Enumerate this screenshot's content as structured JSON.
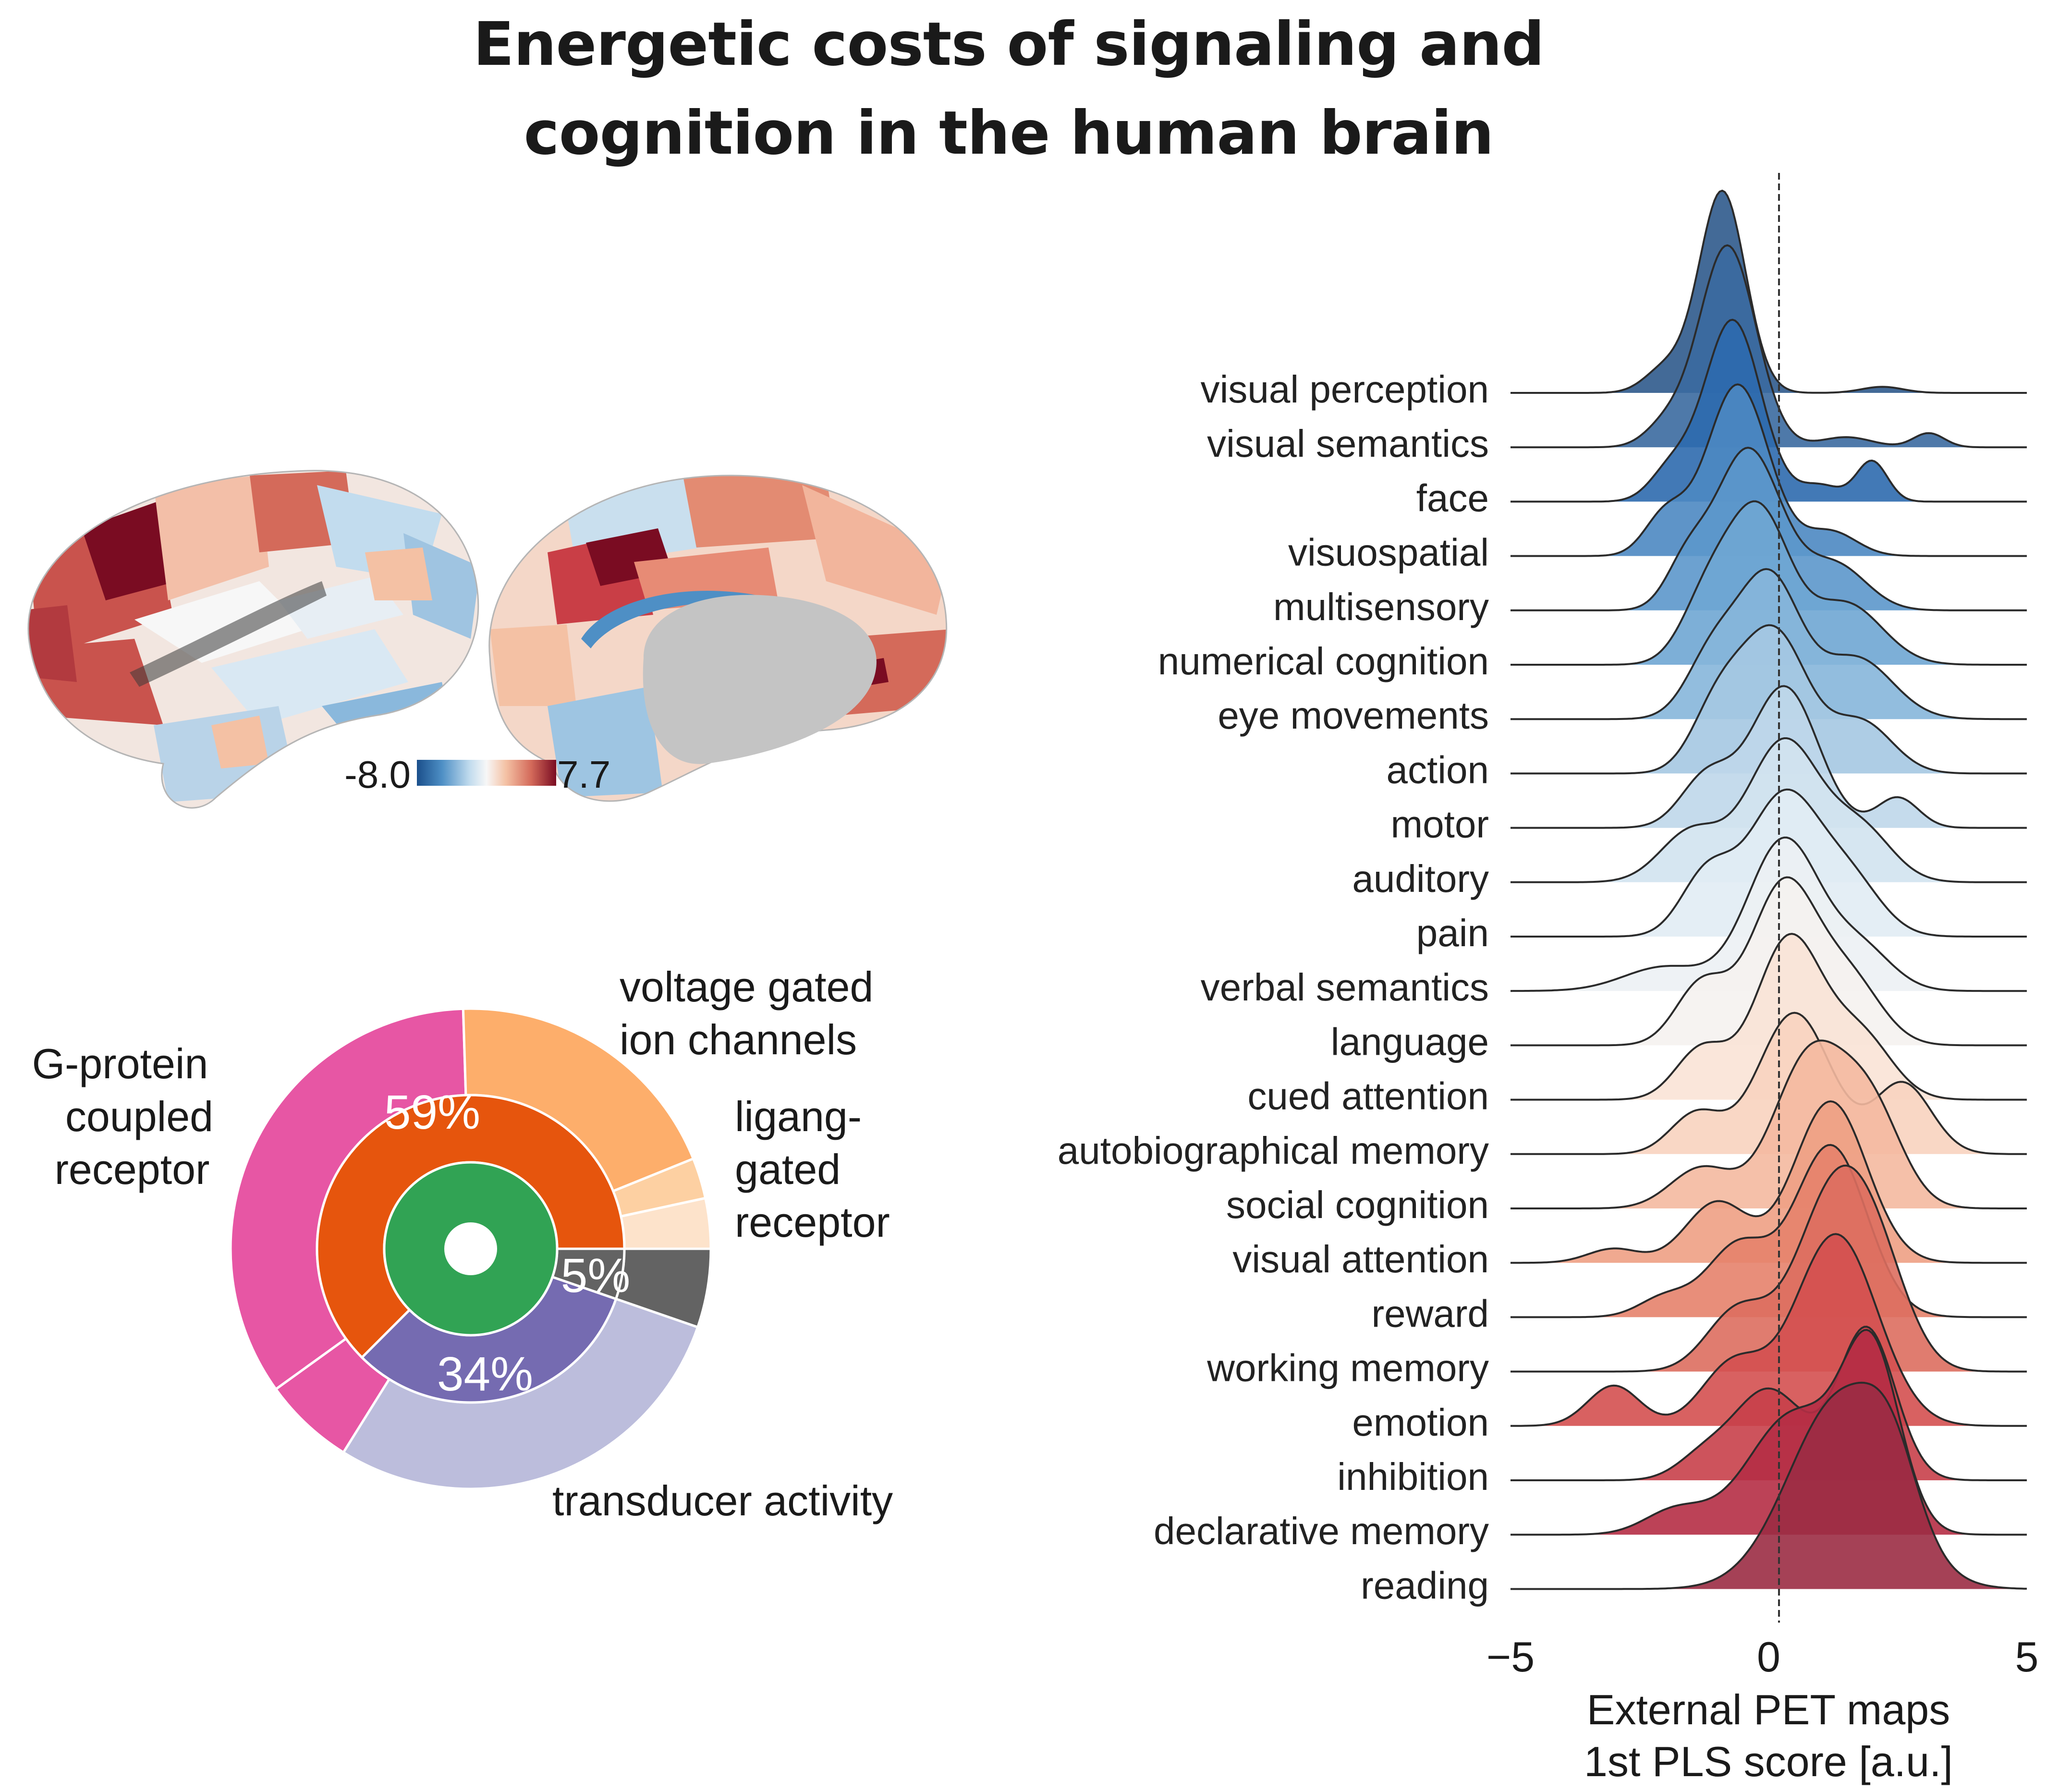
{
  "title": {
    "line1": "Energetic costs of signaling and",
    "line2": "cognition in the human brain"
  },
  "brain_colorbar": {
    "min_label": "-8.0",
    "max_label": "7.7",
    "colormap": [
      "#1a4f8b",
      "#4e8fc5",
      "#c2dcee",
      "#f7f7f7",
      "#f4c1a4",
      "#d46a5a",
      "#7a0c22"
    ]
  },
  "colors": {
    "gpcr": "#e756a4",
    "voltage_gated": "#fdae6b",
    "ligand_gated": "#fdd0a2",
    "ligand_gated_light": "#fde3cb",
    "other_outer": "#636363",
    "inner_59": "#e6550d",
    "inner_34": "#756bb1",
    "transducer_light": "#bcbddc",
    "center": "#31a354"
  },
  "donut": {
    "labels": {
      "gpcr": [
        "G-protein",
        "coupled",
        "receptor"
      ],
      "voltage_gated": [
        "voltage gated",
        "ion channels"
      ],
      "ligand_gated": [
        "ligang-",
        "gated",
        "receptor"
      ],
      "transducer": "transducer activity"
    },
    "percent_labels": {
      "p59": "59%",
      "p34": "34%",
      "p5": "5%"
    }
  },
  "chart_data": {
    "type": "ridgeline",
    "xlabel_line1": "External PET maps",
    "xlabel_line2": "1st PLS score [a.u.]",
    "xlim": [
      -5,
      5
    ],
    "xticks": [
      {
        "value": -5,
        "label": "−5"
      },
      {
        "value": 0,
        "label": "0"
      },
      {
        "value": 5,
        "label": "5"
      }
    ],
    "reference_line_x": 0.2,
    "categories": [
      {
        "name": "visual perception",
        "peaks": [
          [
            -0.9,
            1.0,
            0.45
          ],
          [
            -2.0,
            0.12,
            0.4
          ],
          [
            2.2,
            0.03,
            0.4
          ]
        ],
        "color": "#2f5a8c"
      },
      {
        "name": "visual semantics",
        "peaks": [
          [
            -0.8,
            1.0,
            0.55
          ],
          [
            -2.0,
            0.1,
            0.4
          ],
          [
            3.1,
            0.07,
            0.3
          ],
          [
            1.5,
            0.05,
            0.5
          ]
        ],
        "color": "#3b6aa0"
      },
      {
        "name": "face",
        "peaks": [
          [
            -0.7,
            0.9,
            0.55
          ],
          [
            -1.9,
            0.15,
            0.4
          ],
          [
            2.0,
            0.2,
            0.3
          ],
          [
            1.0,
            0.08,
            0.4
          ]
        ],
        "color": "#2d6aae"
      },
      {
        "name": "visuospatial",
        "peaks": [
          [
            -0.6,
            0.85,
            0.6
          ],
          [
            -2.0,
            0.2,
            0.4
          ],
          [
            1.2,
            0.12,
            0.5
          ]
        ],
        "color": "#4d88c2"
      },
      {
        "name": "multisensory",
        "peaks": [
          [
            -0.4,
            0.8,
            0.65
          ],
          [
            -1.6,
            0.2,
            0.4
          ],
          [
            1.3,
            0.22,
            0.6
          ]
        ],
        "color": "#5c97cb"
      },
      {
        "name": "numerical cognition",
        "peaks": [
          [
            -0.2,
            0.75,
            0.6
          ],
          [
            -1.2,
            0.3,
            0.5
          ],
          [
            1.5,
            0.3,
            0.7
          ]
        ],
        "color": "#6fa6d3"
      },
      {
        "name": "eye movements",
        "peaks": [
          [
            0.0,
            0.7,
            0.6
          ],
          [
            -1.1,
            0.3,
            0.5
          ],
          [
            1.7,
            0.3,
            0.7
          ]
        ],
        "color": "#86b6da"
      },
      {
        "name": "action",
        "peaks": [
          [
            0.1,
            0.7,
            0.65
          ],
          [
            -1.0,
            0.3,
            0.5
          ],
          [
            1.8,
            0.25,
            0.6
          ]
        ],
        "color": "#a5c8e2"
      },
      {
        "name": "motor",
        "peaks": [
          [
            0.3,
            0.7,
            0.65
          ],
          [
            -1.2,
            0.25,
            0.5
          ],
          [
            2.5,
            0.15,
            0.4
          ]
        ],
        "color": "#bfd7ea"
      },
      {
        "name": "auditory",
        "peaks": [
          [
            0.3,
            0.7,
            0.7
          ],
          [
            -1.5,
            0.25,
            0.6
          ],
          [
            1.8,
            0.25,
            0.6
          ]
        ],
        "color": "#d2e3f0"
      },
      {
        "name": "pain",
        "peaks": [
          [
            0.3,
            0.7,
            0.7
          ],
          [
            -1.2,
            0.3,
            0.5
          ],
          [
            1.6,
            0.25,
            0.6
          ]
        ],
        "color": "#e1ecf4"
      },
      {
        "name": "verbal semantics",
        "peaks": [
          [
            0.3,
            0.75,
            0.7
          ],
          [
            -2.0,
            0.12,
            0.8
          ],
          [
            1.8,
            0.2,
            0.6
          ]
        ],
        "color": "#ecf1f4"
      },
      {
        "name": "language",
        "peaks": [
          [
            0.3,
            0.8,
            0.65
          ],
          [
            -1.3,
            0.3,
            0.5
          ],
          [
            1.6,
            0.3,
            0.6
          ]
        ],
        "color": "#f5f2ef"
      },
      {
        "name": "cued attention",
        "peaks": [
          [
            0.4,
            0.8,
            0.65
          ],
          [
            -1.3,
            0.25,
            0.5
          ],
          [
            1.8,
            0.3,
            0.6
          ]
        ],
        "color": "#f9e3d6"
      },
      {
        "name": "autobiographical memory",
        "peaks": [
          [
            0.5,
            0.7,
            0.7
          ],
          [
            -1.4,
            0.2,
            0.5
          ],
          [
            2.6,
            0.35,
            0.55
          ]
        ],
        "color": "#f8d3bf"
      },
      {
        "name": "social cognition",
        "peaks": [
          [
            0.8,
            0.75,
            0.7
          ],
          [
            -1.3,
            0.2,
            0.6
          ],
          [
            2.0,
            0.45,
            0.6
          ]
        ],
        "color": "#f4b9a0"
      },
      {
        "name": "visual attention",
        "peaks": [
          [
            1.2,
            0.8,
            0.7
          ],
          [
            -1.0,
            0.3,
            0.6
          ],
          [
            -3.0,
            0.07,
            0.5
          ]
        ],
        "color": "#eea084"
      },
      {
        "name": "reward",
        "peaks": [
          [
            1.2,
            0.85,
            0.7
          ],
          [
            -0.6,
            0.35,
            0.6
          ],
          [
            -2.0,
            0.1,
            0.5
          ]
        ],
        "color": "#e6826b"
      },
      {
        "name": "working memory",
        "peaks": [
          [
            1.3,
            0.9,
            0.75
          ],
          [
            -0.6,
            0.3,
            0.6
          ],
          [
            2.2,
            0.3,
            0.6
          ]
        ],
        "color": "#dd6e5f"
      },
      {
        "name": "emotion",
        "peaks": [
          [
            1.3,
            0.95,
            0.8
          ],
          [
            -3.0,
            0.2,
            0.5
          ],
          [
            -0.7,
            0.3,
            0.6
          ]
        ],
        "color": "#d45050"
      },
      {
        "name": "inhibition",
        "peaks": [
          [
            1.9,
            0.75,
            0.55
          ],
          [
            0.0,
            0.45,
            0.7
          ],
          [
            -1.3,
            0.1,
            0.5
          ]
        ],
        "color": "#c8404a"
      },
      {
        "name": "declarative memory",
        "peaks": [
          [
            2.0,
            0.85,
            0.55
          ],
          [
            0.5,
            0.6,
            0.9
          ],
          [
            -1.8,
            0.12,
            0.6
          ]
        ],
        "color": "#b52e45"
      },
      {
        "name": "reading",
        "peaks": [
          [
            1.4,
            0.95,
            1.0
          ],
          [
            2.4,
            0.3,
            0.5
          ]
        ],
        "color": "#9b2c44"
      }
    ]
  }
}
